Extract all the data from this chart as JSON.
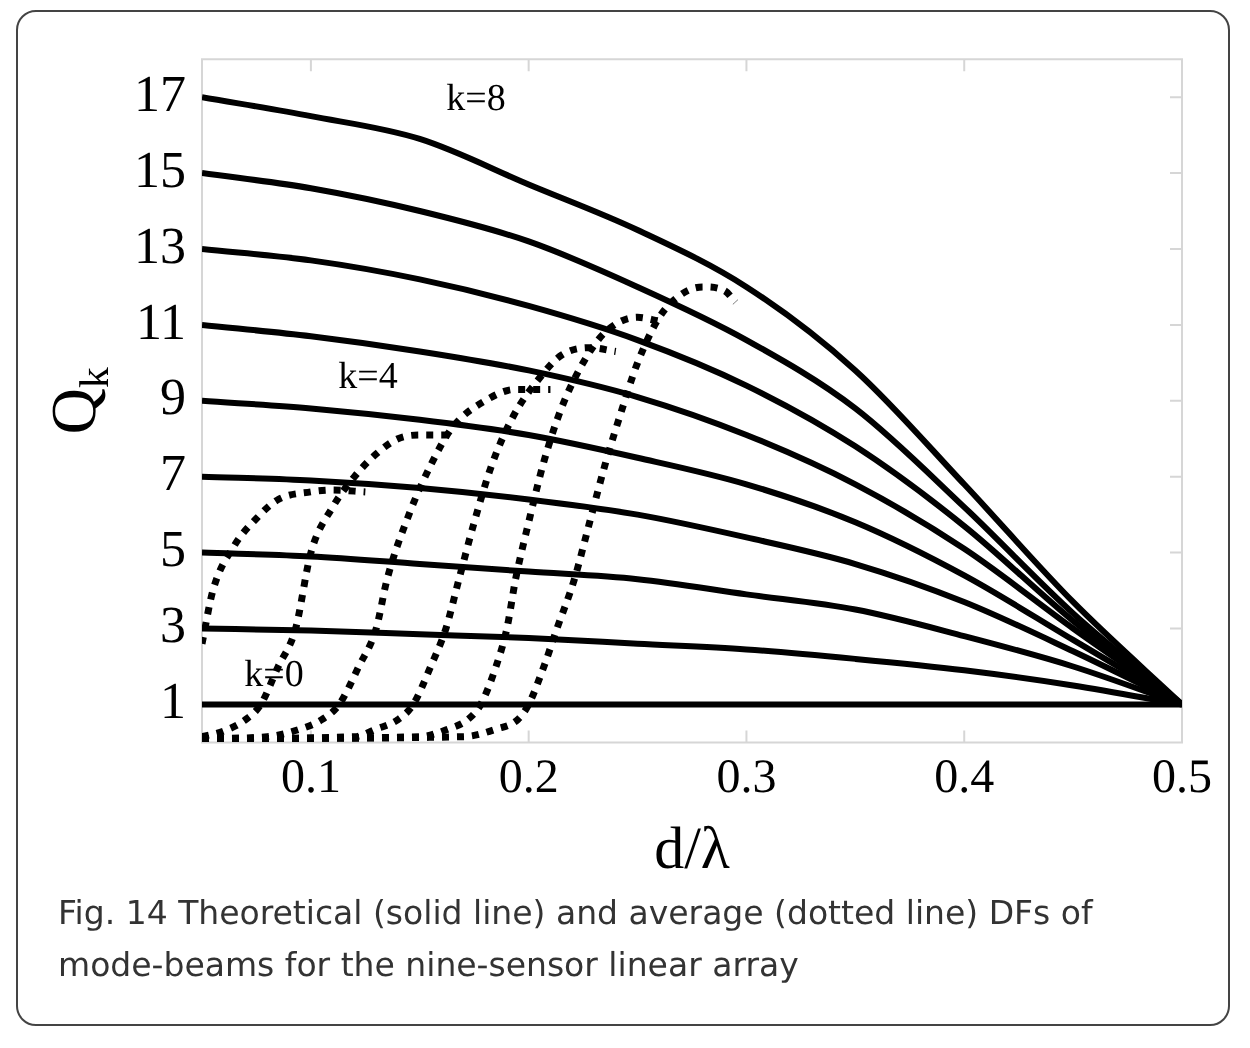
{
  "chart_data": {
    "type": "line",
    "xlabel": "d/λ",
    "ylabel": "Q$_{k}$",
    "xlim": [
      0.05,
      0.5
    ],
    "ylim": [
      0,
      18
    ],
    "xticks": [
      0.1,
      0.2,
      0.3,
      0.4,
      0.5
    ],
    "yticks": [
      1,
      3,
      5,
      7,
      9,
      11,
      13,
      15,
      17
    ],
    "grid": false,
    "legend": false,
    "series": [
      {
        "color": "#000000",
        "line_style": "solid",
        "x": [
          0.05,
          0.1,
          0.15,
          0.2,
          0.25,
          0.3,
          0.35,
          0.4,
          0.45,
          0.5
        ],
        "values": [
          17,
          16.5,
          15.9,
          14.7,
          13.5,
          12.0,
          9.8,
          6.8,
          3.7,
          1
        ]
      },
      {
        "color": "#000000",
        "line_style": "solid",
        "x": [
          0.05,
          0.1,
          0.15,
          0.2,
          0.25,
          0.3,
          0.35,
          0.4,
          0.45,
          0.5
        ],
        "values": [
          15,
          14.6,
          14.0,
          13.2,
          12.0,
          10.6,
          8.8,
          6.2,
          3.4,
          1
        ]
      },
      {
        "color": "#000000",
        "line_style": "solid",
        "x": [
          0.05,
          0.1,
          0.15,
          0.2,
          0.25,
          0.3,
          0.35,
          0.4,
          0.45,
          0.5
        ],
        "values": [
          13,
          12.7,
          12.2,
          11.5,
          10.6,
          9.4,
          7.8,
          5.7,
          3.2,
          1
        ]
      },
      {
        "color": "#000000",
        "line_style": "solid",
        "x": [
          0.05,
          0.1,
          0.15,
          0.2,
          0.25,
          0.3,
          0.35,
          0.4,
          0.45,
          0.5
        ],
        "values": [
          11,
          10.7,
          10.3,
          9.8,
          9.1,
          8.1,
          6.8,
          5.1,
          3.0,
          1
        ]
      },
      {
        "color": "#000000",
        "line_style": "solid",
        "x": [
          0.05,
          0.1,
          0.15,
          0.2,
          0.25,
          0.3,
          0.35,
          0.4,
          0.45,
          0.5
        ],
        "values": [
          9,
          8.8,
          8.5,
          8.1,
          7.5,
          6.8,
          5.8,
          4.4,
          2.7,
          1
        ]
      },
      {
        "color": "#000000",
        "line_style": "solid",
        "x": [
          0.05,
          0.1,
          0.15,
          0.2,
          0.25,
          0.3,
          0.35,
          0.4,
          0.45,
          0.5
        ],
        "values": [
          7,
          6.9,
          6.7,
          6.4,
          6.0,
          5.4,
          4.7,
          3.7,
          2.4,
          1
        ]
      },
      {
        "color": "#000000",
        "line_style": "solid",
        "x": [
          0.05,
          0.1,
          0.15,
          0.2,
          0.25,
          0.3,
          0.35,
          0.4,
          0.45,
          0.5
        ],
        "values": [
          5,
          4.9,
          4.7,
          4.5,
          4.3,
          3.9,
          3.5,
          2.8,
          2.0,
          1
        ]
      },
      {
        "color": "#000000",
        "line_style": "solid",
        "x": [
          0.05,
          0.1,
          0.15,
          0.2,
          0.25,
          0.3,
          0.35,
          0.4,
          0.45,
          0.5
        ],
        "values": [
          3,
          2.95,
          2.85,
          2.75,
          2.6,
          2.45,
          2.2,
          1.9,
          1.5,
          1
        ]
      },
      {
        "color": "#000000",
        "line_style": "solid",
        "x": [
          0.05,
          0.5
        ],
        "values": [
          1,
          1
        ]
      },
      {
        "color": "#000000",
        "line_style": "dotted",
        "x": [
          0.05,
          0.055,
          0.065,
          0.075,
          0.085,
          0.1,
          0.11,
          0.125
        ],
        "values": [
          2.6,
          4.0,
          5.2,
          5.9,
          6.4,
          6.6,
          6.65,
          6.6
        ]
      },
      {
        "color": "#000000",
        "line_style": "dotted",
        "x": [
          0.05,
          0.06,
          0.07,
          0.077,
          0.085,
          0.093,
          0.1,
          0.11,
          0.12,
          0.13,
          0.14,
          0.15,
          0.165
        ],
        "values": [
          0.15,
          0.3,
          0.6,
          1,
          2,
          3,
          5,
          6.2,
          7.0,
          7.6,
          8.0,
          8.1,
          8.1
        ]
      },
      {
        "color": "#000000",
        "line_style": "dotted",
        "x": [
          0.05,
          0.08,
          0.095,
          0.105,
          0.113,
          0.122,
          0.13,
          0.135,
          0.145,
          0.155,
          0.165,
          0.18,
          0.194,
          0.21
        ],
        "values": [
          0.1,
          0.15,
          0.35,
          0.6,
          1,
          2,
          3,
          4.3,
          6,
          7.3,
          8.3,
          9.0,
          9.3,
          9.3
        ]
      },
      {
        "color": "#000000",
        "line_style": "dotted",
        "x": [
          0.05,
          0.12,
          0.13,
          0.14,
          0.147,
          0.155,
          0.162,
          0.168,
          0.175,
          0.183,
          0.193,
          0.205,
          0.215,
          0.228,
          0.24
        ],
        "values": [
          0.1,
          0.15,
          0.35,
          0.6,
          1,
          2,
          3,
          4.3,
          5.8,
          7.3,
          8.6,
          9.6,
          10.2,
          10.4,
          10.3
        ]
      },
      {
        "color": "#000000",
        "line_style": "dotted",
        "x": [
          0.05,
          0.15,
          0.163,
          0.172,
          0.178,
          0.185,
          0.19,
          0.194,
          0.2,
          0.207,
          0.215,
          0.225,
          0.235,
          0.25,
          0.26
        ],
        "values": [
          0.1,
          0.15,
          0.35,
          0.6,
          1,
          2,
          3,
          4.3,
          5.8,
          7.4,
          8.8,
          10.0,
          10.8,
          11.2,
          11.1
        ]
      },
      {
        "color": "#000000",
        "line_style": "dotted",
        "x": [
          0.05,
          0.17,
          0.185,
          0.195,
          0.2,
          0.207,
          0.213,
          0.221,
          0.228,
          0.235,
          0.243,
          0.25,
          0.26,
          0.27,
          0.28,
          0.29,
          0.295
        ],
        "values": [
          0.1,
          0.15,
          0.35,
          0.6,
          1,
          2,
          3,
          4.3,
          5.8,
          7.3,
          8.8,
          10.0,
          11.2,
          11.8,
          12.0,
          11.9,
          11.6
        ]
      }
    ],
    "annotations": [
      "k=8",
      "k=4",
      "k=0",
      "Fig. 14 Theoretical (solid line) and average (dotted line) DFs of mode-beams for the nine-sensor linear array"
    ]
  }
}
